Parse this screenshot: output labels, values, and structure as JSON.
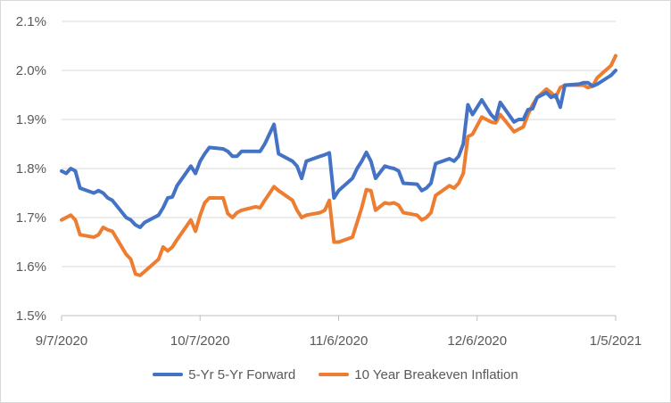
{
  "chart_data": {
    "type": "line",
    "title": "",
    "xlabel": "",
    "ylabel": "",
    "x_ticks": [
      "9/7/2020",
      "10/7/2020",
      "11/6/2020",
      "12/6/2020",
      "1/5/2021"
    ],
    "y_ticks": [
      "1.5%",
      "1.6%",
      "1.7%",
      "1.8%",
      "1.9%",
      "2.0%",
      "2.1%"
    ],
    "x_range": [
      "2020-09-07",
      "2021-01-05"
    ],
    "ylim": [
      1.5,
      2.1
    ],
    "grid": "horizontal",
    "legend_position": "bottom",
    "series": [
      {
        "name": "5-Yr 5-Yr Forward",
        "color": "#4472C4",
        "points": [
          [
            "2020-09-07",
            1.795
          ],
          [
            "2020-09-08",
            1.79
          ],
          [
            "2020-09-09",
            1.8
          ],
          [
            "2020-09-10",
            1.795
          ],
          [
            "2020-09-11",
            1.76
          ],
          [
            "2020-09-14",
            1.75
          ],
          [
            "2020-09-15",
            1.755
          ],
          [
            "2020-09-16",
            1.75
          ],
          [
            "2020-09-17",
            1.74
          ],
          [
            "2020-09-18",
            1.735
          ],
          [
            "2020-09-21",
            1.7
          ],
          [
            "2020-09-22",
            1.695
          ],
          [
            "2020-09-23",
            1.685
          ],
          [
            "2020-09-24",
            1.68
          ],
          [
            "2020-09-25",
            1.69
          ],
          [
            "2020-09-28",
            1.705
          ],
          [
            "2020-09-29",
            1.72
          ],
          [
            "2020-09-30",
            1.74
          ],
          [
            "2020-10-01",
            1.742
          ],
          [
            "2020-10-02",
            1.765
          ],
          [
            "2020-10-05",
            1.805
          ],
          [
            "2020-10-06",
            1.79
          ],
          [
            "2020-10-07",
            1.815
          ],
          [
            "2020-10-08",
            1.83
          ],
          [
            "2020-10-09",
            1.843
          ],
          [
            "2020-10-12",
            1.84
          ],
          [
            "2020-10-13",
            1.835
          ],
          [
            "2020-10-14",
            1.825
          ],
          [
            "2020-10-15",
            1.825
          ],
          [
            "2020-10-16",
            1.835
          ],
          [
            "2020-10-19",
            1.835
          ],
          [
            "2020-10-20",
            1.835
          ],
          [
            "2020-10-21",
            1.85
          ],
          [
            "2020-10-23",
            1.89
          ],
          [
            "2020-10-24",
            1.83
          ],
          [
            "2020-10-27",
            1.815
          ],
          [
            "2020-10-28",
            1.805
          ],
          [
            "2020-10-29",
            1.78
          ],
          [
            "2020-10-30",
            1.815
          ],
          [
            "2020-11-02",
            1.825
          ],
          [
            "2020-11-03",
            1.828
          ],
          [
            "2020-11-04",
            1.832
          ],
          [
            "2020-11-05",
            1.74
          ],
          [
            "2020-11-06",
            1.755
          ],
          [
            "2020-11-09",
            1.78
          ],
          [
            "2020-11-10",
            1.8
          ],
          [
            "2020-11-11",
            1.815
          ],
          [
            "2020-11-12",
            1.833
          ],
          [
            "2020-11-13",
            1.815
          ],
          [
            "2020-11-14",
            1.78
          ],
          [
            "2020-11-16",
            1.805
          ],
          [
            "2020-11-17",
            1.802
          ],
          [
            "2020-11-18",
            1.8
          ],
          [
            "2020-11-19",
            1.795
          ],
          [
            "2020-11-20",
            1.77
          ],
          [
            "2020-11-23",
            1.768
          ],
          [
            "2020-11-24",
            1.755
          ],
          [
            "2020-11-25",
            1.76
          ],
          [
            "2020-11-26",
            1.77
          ],
          [
            "2020-11-27",
            1.81
          ],
          [
            "2020-11-30",
            1.82
          ],
          [
            "2020-12-01",
            1.815
          ],
          [
            "2020-12-02",
            1.825
          ],
          [
            "2020-12-03",
            1.85
          ],
          [
            "2020-12-04",
            1.93
          ],
          [
            "2020-12-05",
            1.91
          ],
          [
            "2020-12-07",
            1.94
          ],
          [
            "2020-12-08",
            1.925
          ],
          [
            "2020-12-09",
            1.91
          ],
          [
            "2020-12-10",
            1.9
          ],
          [
            "2020-12-11",
            1.935
          ],
          [
            "2020-12-14",
            1.895
          ],
          [
            "2020-12-15",
            1.9
          ],
          [
            "2020-12-16",
            1.9
          ],
          [
            "2020-12-17",
            1.92
          ],
          [
            "2020-12-18",
            1.922
          ],
          [
            "2020-12-19",
            1.945
          ],
          [
            "2020-12-21",
            1.955
          ],
          [
            "2020-12-22",
            1.945
          ],
          [
            "2020-12-23",
            1.95
          ],
          [
            "2020-12-24",
            1.925
          ],
          [
            "2020-12-25",
            1.97
          ],
          [
            "2020-12-28",
            1.972
          ],
          [
            "2020-12-29",
            1.975
          ],
          [
            "2020-12-30",
            1.975
          ],
          [
            "2020-12-31",
            1.968
          ],
          [
            "2021-01-01",
            1.972
          ],
          [
            "2021-01-04",
            1.99
          ],
          [
            "2021-01-05",
            2.0
          ]
        ]
      },
      {
        "name": "10 Year Breakeven Inflation",
        "color": "#ED7D31",
        "points": [
          [
            "2020-09-07",
            1.695
          ],
          [
            "2020-09-08",
            1.7
          ],
          [
            "2020-09-09",
            1.705
          ],
          [
            "2020-09-10",
            1.695
          ],
          [
            "2020-09-11",
            1.665
          ],
          [
            "2020-09-14",
            1.66
          ],
          [
            "2020-09-15",
            1.665
          ],
          [
            "2020-09-16",
            1.68
          ],
          [
            "2020-09-17",
            1.675
          ],
          [
            "2020-09-18",
            1.672
          ],
          [
            "2020-09-21",
            1.625
          ],
          [
            "2020-09-22",
            1.615
          ],
          [
            "2020-09-23",
            1.585
          ],
          [
            "2020-09-24",
            1.582
          ],
          [
            "2020-09-25",
            1.59
          ],
          [
            "2020-09-28",
            1.615
          ],
          [
            "2020-09-29",
            1.64
          ],
          [
            "2020-09-30",
            1.632
          ],
          [
            "2020-10-01",
            1.64
          ],
          [
            "2020-10-02",
            1.655
          ],
          [
            "2020-10-05",
            1.695
          ],
          [
            "2020-10-06",
            1.672
          ],
          [
            "2020-10-07",
            1.705
          ],
          [
            "2020-10-08",
            1.73
          ],
          [
            "2020-10-09",
            1.74
          ],
          [
            "2020-10-12",
            1.74
          ],
          [
            "2020-10-13",
            1.708
          ],
          [
            "2020-10-14",
            1.7
          ],
          [
            "2020-10-15",
            1.71
          ],
          [
            "2020-10-16",
            1.715
          ],
          [
            "2020-10-19",
            1.722
          ],
          [
            "2020-10-20",
            1.72
          ],
          [
            "2020-10-21",
            1.735
          ],
          [
            "2020-10-23",
            1.763
          ],
          [
            "2020-10-24",
            1.755
          ],
          [
            "2020-10-27",
            1.735
          ],
          [
            "2020-10-28",
            1.715
          ],
          [
            "2020-10-29",
            1.7
          ],
          [
            "2020-10-30",
            1.705
          ],
          [
            "2020-11-02",
            1.71
          ],
          [
            "2020-11-03",
            1.715
          ],
          [
            "2020-11-04",
            1.735
          ],
          [
            "2020-11-05",
            1.65
          ],
          [
            "2020-11-06",
            1.65
          ],
          [
            "2020-11-09",
            1.66
          ],
          [
            "2020-11-10",
            1.69
          ],
          [
            "2020-11-11",
            1.72
          ],
          [
            "2020-11-12",
            1.757
          ],
          [
            "2020-11-13",
            1.755
          ],
          [
            "2020-11-14",
            1.715
          ],
          [
            "2020-11-16",
            1.73
          ],
          [
            "2020-11-17",
            1.728
          ],
          [
            "2020-11-18",
            1.73
          ],
          [
            "2020-11-19",
            1.725
          ],
          [
            "2020-11-20",
            1.71
          ],
          [
            "2020-11-23",
            1.705
          ],
          [
            "2020-11-24",
            1.695
          ],
          [
            "2020-11-25",
            1.7
          ],
          [
            "2020-11-26",
            1.71
          ],
          [
            "2020-11-27",
            1.745
          ],
          [
            "2020-11-30",
            1.765
          ],
          [
            "2020-12-01",
            1.76
          ],
          [
            "2020-12-02",
            1.77
          ],
          [
            "2020-12-03",
            1.79
          ],
          [
            "2020-12-04",
            1.865
          ],
          [
            "2020-12-05",
            1.87
          ],
          [
            "2020-12-07",
            1.905
          ],
          [
            "2020-12-08",
            1.9
          ],
          [
            "2020-12-09",
            1.895
          ],
          [
            "2020-12-10",
            1.893
          ],
          [
            "2020-12-11",
            1.91
          ],
          [
            "2020-12-14",
            1.875
          ],
          [
            "2020-12-15",
            1.88
          ],
          [
            "2020-12-16",
            1.885
          ],
          [
            "2020-12-17",
            1.91
          ],
          [
            "2020-12-18",
            1.93
          ],
          [
            "2020-12-19",
            1.945
          ],
          [
            "2020-12-21",
            1.962
          ],
          [
            "2020-12-22",
            1.955
          ],
          [
            "2020-12-23",
            1.945
          ],
          [
            "2020-12-24",
            1.965
          ],
          [
            "2020-12-25",
            1.97
          ],
          [
            "2020-12-28",
            1.97
          ],
          [
            "2020-12-29",
            1.97
          ],
          [
            "2020-12-30",
            1.965
          ],
          [
            "2020-12-31",
            1.968
          ],
          [
            "2021-01-01",
            1.985
          ],
          [
            "2021-01-04",
            2.01
          ],
          [
            "2021-01-05",
            2.03
          ]
        ]
      }
    ]
  }
}
